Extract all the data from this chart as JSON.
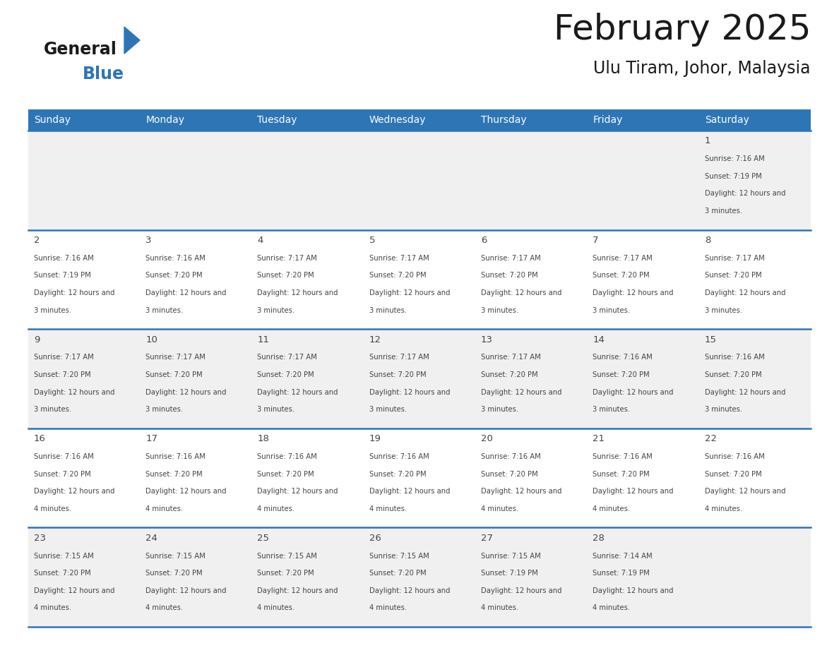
{
  "title": "February 2025",
  "subtitle": "Ulu Tiram, Johor, Malaysia",
  "header_bg": "#2E75B6",
  "header_text_color": "#FFFFFF",
  "cell_bg_row0": "#F0F0F0",
  "cell_bg_row1": "#FFFFFF",
  "cell_bg_row2": "#F0F0F0",
  "cell_bg_row3": "#FFFFFF",
  "cell_bg_row4": "#F0F0F0",
  "border_color": "#2E75B6",
  "day_headers": [
    "Sunday",
    "Monday",
    "Tuesday",
    "Wednesday",
    "Thursday",
    "Friday",
    "Saturday"
  ],
  "days_data": [
    {
      "day": 1,
      "col": 6,
      "row": 0,
      "sunrise": "7:16 AM",
      "sunset": "7:19 PM",
      "daylight": "12 hours and 3 minutes."
    },
    {
      "day": 2,
      "col": 0,
      "row": 1,
      "sunrise": "7:16 AM",
      "sunset": "7:19 PM",
      "daylight": "12 hours and 3 minutes."
    },
    {
      "day": 3,
      "col": 1,
      "row": 1,
      "sunrise": "7:16 AM",
      "sunset": "7:20 PM",
      "daylight": "12 hours and 3 minutes."
    },
    {
      "day": 4,
      "col": 2,
      "row": 1,
      "sunrise": "7:17 AM",
      "sunset": "7:20 PM",
      "daylight": "12 hours and 3 minutes."
    },
    {
      "day": 5,
      "col": 3,
      "row": 1,
      "sunrise": "7:17 AM",
      "sunset": "7:20 PM",
      "daylight": "12 hours and 3 minutes."
    },
    {
      "day": 6,
      "col": 4,
      "row": 1,
      "sunrise": "7:17 AM",
      "sunset": "7:20 PM",
      "daylight": "12 hours and 3 minutes."
    },
    {
      "day": 7,
      "col": 5,
      "row": 1,
      "sunrise": "7:17 AM",
      "sunset": "7:20 PM",
      "daylight": "12 hours and 3 minutes."
    },
    {
      "day": 8,
      "col": 6,
      "row": 1,
      "sunrise": "7:17 AM",
      "sunset": "7:20 PM",
      "daylight": "12 hours and 3 minutes."
    },
    {
      "day": 9,
      "col": 0,
      "row": 2,
      "sunrise": "7:17 AM",
      "sunset": "7:20 PM",
      "daylight": "12 hours and 3 minutes."
    },
    {
      "day": 10,
      "col": 1,
      "row": 2,
      "sunrise": "7:17 AM",
      "sunset": "7:20 PM",
      "daylight": "12 hours and 3 minutes."
    },
    {
      "day": 11,
      "col": 2,
      "row": 2,
      "sunrise": "7:17 AM",
      "sunset": "7:20 PM",
      "daylight": "12 hours and 3 minutes."
    },
    {
      "day": 12,
      "col": 3,
      "row": 2,
      "sunrise": "7:17 AM",
      "sunset": "7:20 PM",
      "daylight": "12 hours and 3 minutes."
    },
    {
      "day": 13,
      "col": 4,
      "row": 2,
      "sunrise": "7:17 AM",
      "sunset": "7:20 PM",
      "daylight": "12 hours and 3 minutes."
    },
    {
      "day": 14,
      "col": 5,
      "row": 2,
      "sunrise": "7:16 AM",
      "sunset": "7:20 PM",
      "daylight": "12 hours and 3 minutes."
    },
    {
      "day": 15,
      "col": 6,
      "row": 2,
      "sunrise": "7:16 AM",
      "sunset": "7:20 PM",
      "daylight": "12 hours and 3 minutes."
    },
    {
      "day": 16,
      "col": 0,
      "row": 3,
      "sunrise": "7:16 AM",
      "sunset": "7:20 PM",
      "daylight": "12 hours and 4 minutes."
    },
    {
      "day": 17,
      "col": 1,
      "row": 3,
      "sunrise": "7:16 AM",
      "sunset": "7:20 PM",
      "daylight": "12 hours and 4 minutes."
    },
    {
      "day": 18,
      "col": 2,
      "row": 3,
      "sunrise": "7:16 AM",
      "sunset": "7:20 PM",
      "daylight": "12 hours and 4 minutes."
    },
    {
      "day": 19,
      "col": 3,
      "row": 3,
      "sunrise": "7:16 AM",
      "sunset": "7:20 PM",
      "daylight": "12 hours and 4 minutes."
    },
    {
      "day": 20,
      "col": 4,
      "row": 3,
      "sunrise": "7:16 AM",
      "sunset": "7:20 PM",
      "daylight": "12 hours and 4 minutes."
    },
    {
      "day": 21,
      "col": 5,
      "row": 3,
      "sunrise": "7:16 AM",
      "sunset": "7:20 PM",
      "daylight": "12 hours and 4 minutes."
    },
    {
      "day": 22,
      "col": 6,
      "row": 3,
      "sunrise": "7:16 AM",
      "sunset": "7:20 PM",
      "daylight": "12 hours and 4 minutes."
    },
    {
      "day": 23,
      "col": 0,
      "row": 4,
      "sunrise": "7:15 AM",
      "sunset": "7:20 PM",
      "daylight": "12 hours and 4 minutes."
    },
    {
      "day": 24,
      "col": 1,
      "row": 4,
      "sunrise": "7:15 AM",
      "sunset": "7:20 PM",
      "daylight": "12 hours and 4 minutes."
    },
    {
      "day": 25,
      "col": 2,
      "row": 4,
      "sunrise": "7:15 AM",
      "sunset": "7:20 PM",
      "daylight": "12 hours and 4 minutes."
    },
    {
      "day": 26,
      "col": 3,
      "row": 4,
      "sunrise": "7:15 AM",
      "sunset": "7:20 PM",
      "daylight": "12 hours and 4 minutes."
    },
    {
      "day": 27,
      "col": 4,
      "row": 4,
      "sunrise": "7:15 AM",
      "sunset": "7:19 PM",
      "daylight": "12 hours and 4 minutes."
    },
    {
      "day": 28,
      "col": 5,
      "row": 4,
      "sunrise": "7:14 AM",
      "sunset": "7:19 PM",
      "daylight": "12 hours and 4 minutes."
    }
  ],
  "num_rows": 5,
  "num_cols": 7,
  "logo_text1": "General",
  "logo_text2": "Blue",
  "logo_color1": "#1a1a1a",
  "logo_color2": "#2E75B6",
  "logo_triangle_color": "#2E75B6",
  "fig_width": 11.88,
  "fig_height": 9.18,
  "dpi": 100
}
